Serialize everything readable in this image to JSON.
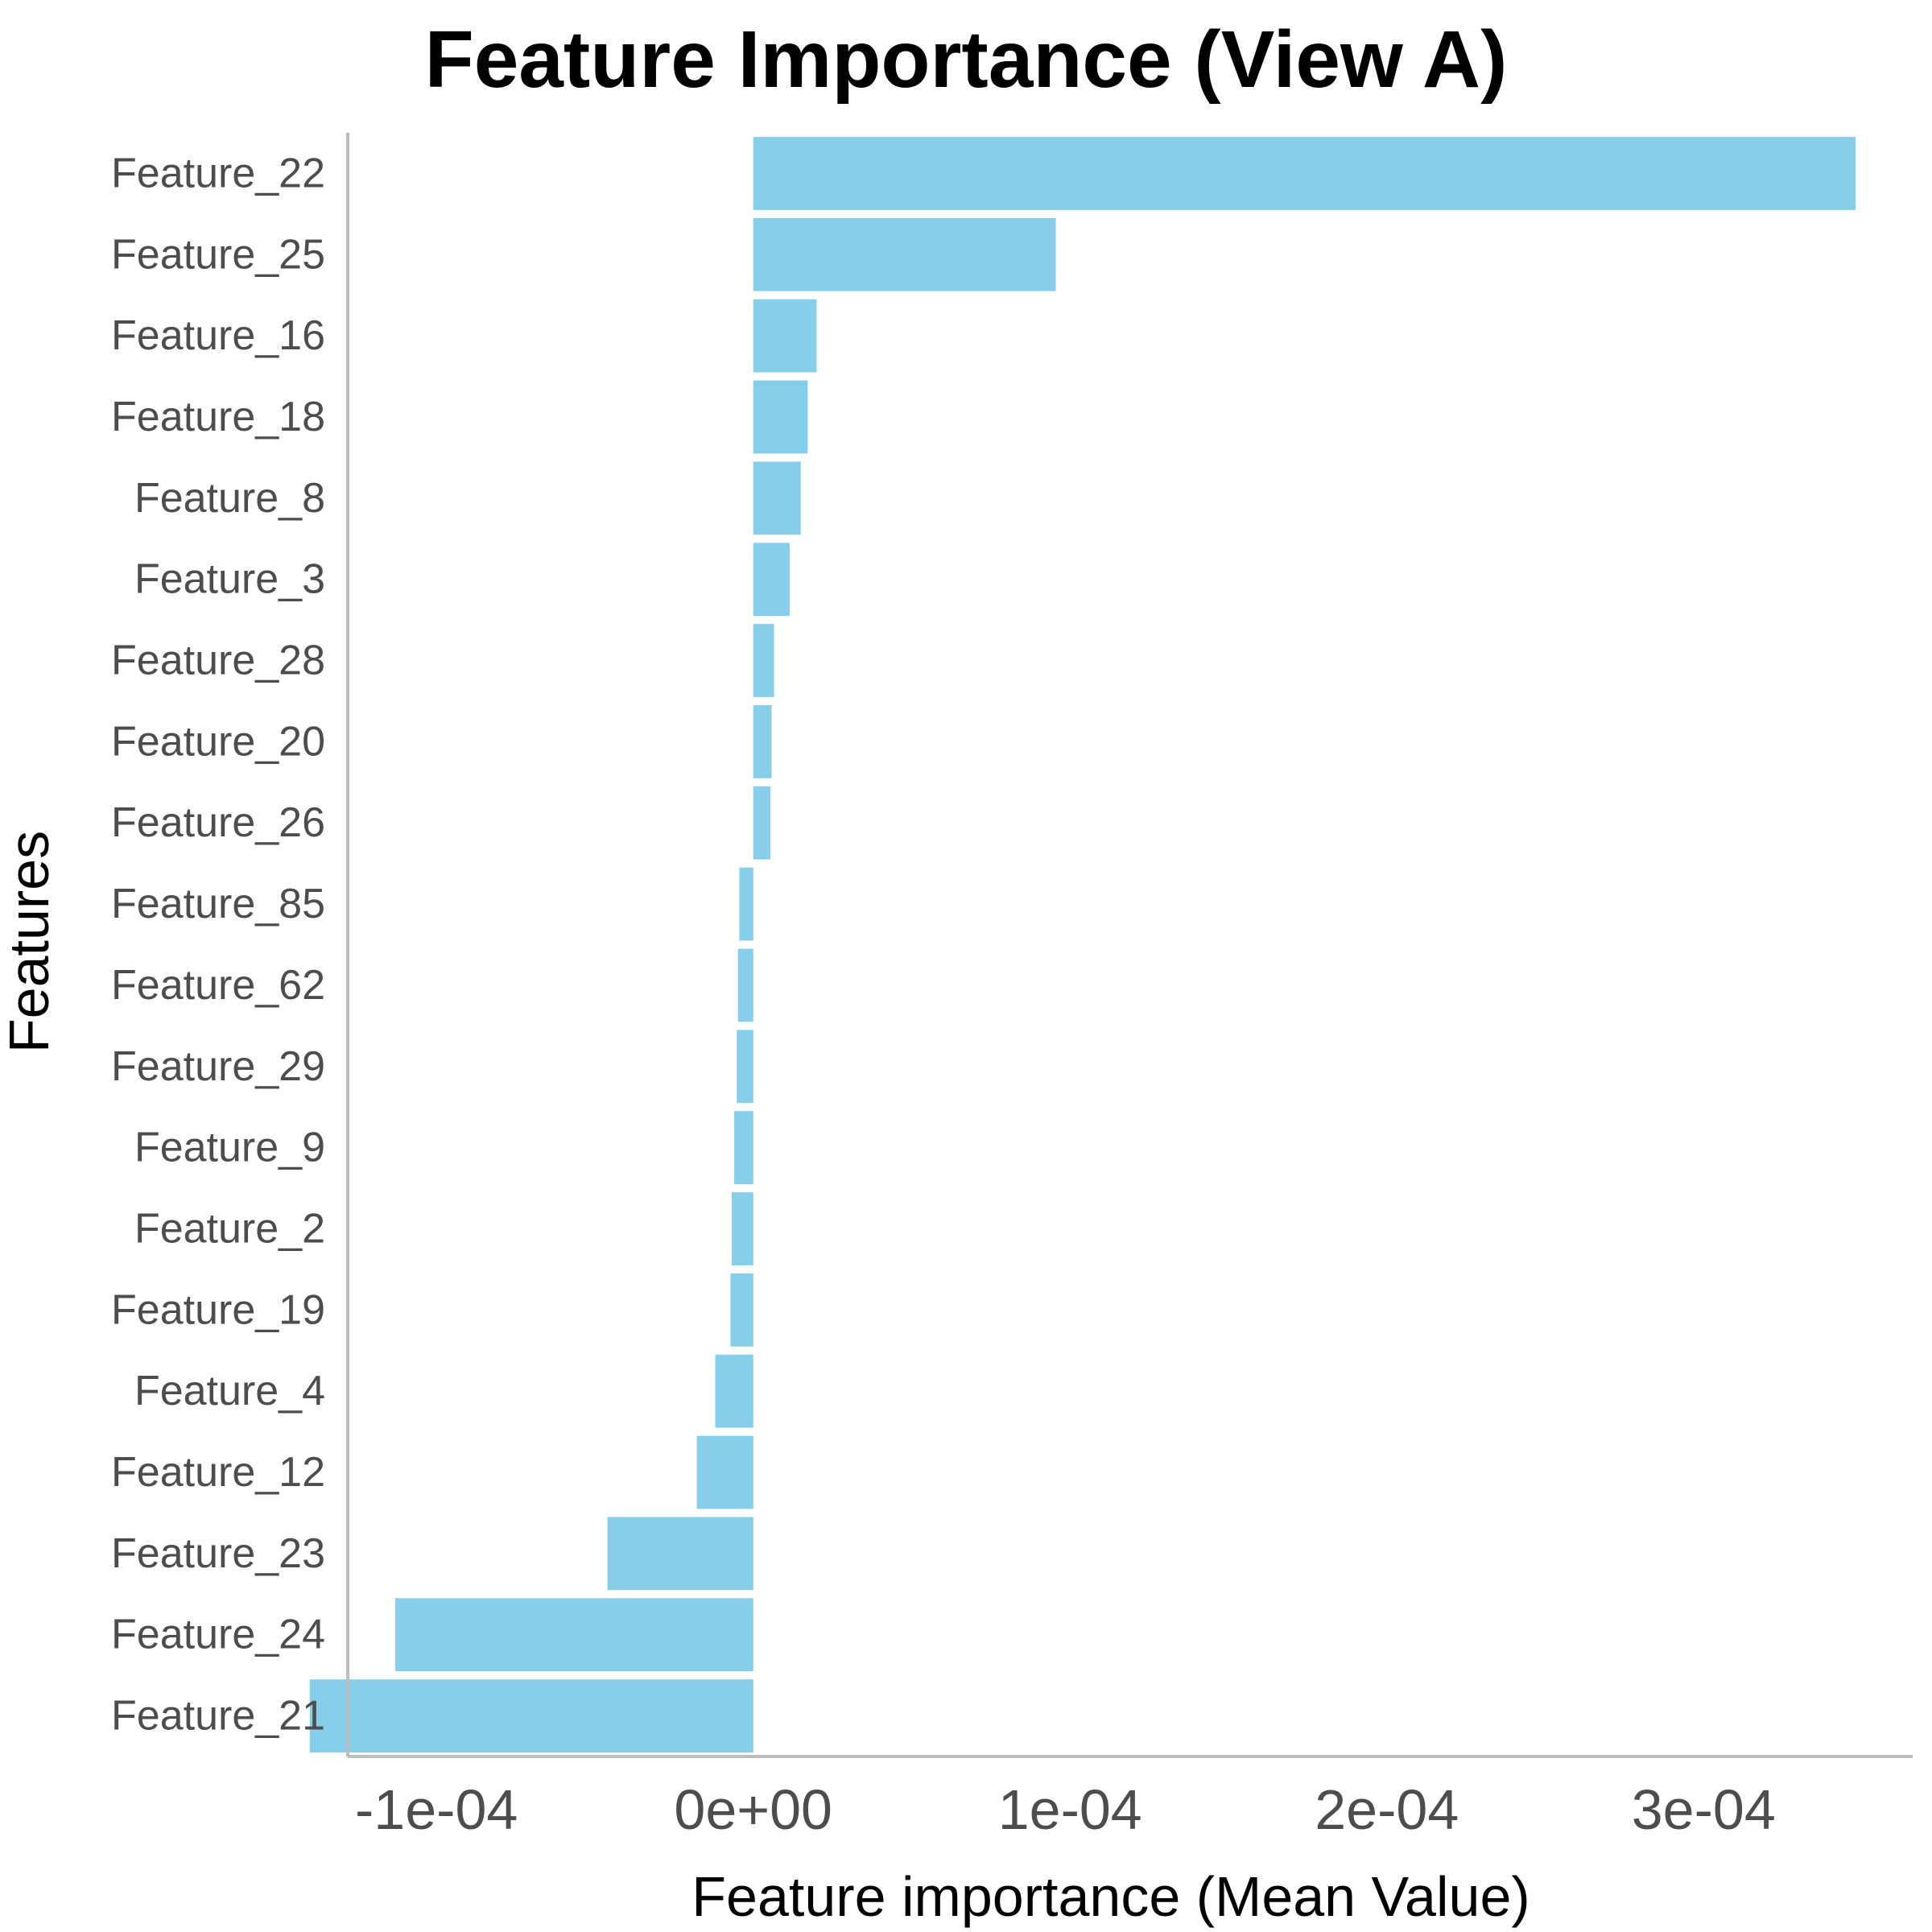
{
  "chart_data": {
    "type": "bar",
    "orientation": "horizontal",
    "title": "Feature Importance (View A)",
    "xlabel": "Feature importance (Mean Value)",
    "ylabel": "Features",
    "bar_color": "#87CEEB",
    "axis_color": "#bebebe",
    "grid": false,
    "xlim": [
      -0.000128,
      0.000366
    ],
    "xticks": [
      {
        "value": -0.0001,
        "label": "-1e-04"
      },
      {
        "value": 0,
        "label": "0e+00"
      },
      {
        "value": 0.0001,
        "label": "1e-04"
      },
      {
        "value": 0.0002,
        "label": "2e-04"
      },
      {
        "value": 0.0003,
        "label": "3e-04"
      }
    ],
    "categories": [
      "Feature_22",
      "Feature_25",
      "Feature_16",
      "Feature_18",
      "Feature_8",
      "Feature_3",
      "Feature_28",
      "Feature_20",
      "Feature_26",
      "Feature_85",
      "Feature_62",
      "Feature_29",
      "Feature_9",
      "Feature_2",
      "Feature_19",
      "Feature_4",
      "Feature_12",
      "Feature_23",
      "Feature_24",
      "Feature_21"
    ],
    "values": [
      0.000348,
      9.55e-05,
      2e-05,
      1.72e-05,
      1.5e-05,
      1.15e-05,
      6.6e-06,
      5.8e-06,
      5.4e-06,
      -4.4e-06,
      -4.8e-06,
      -5.2e-06,
      -6e-06,
      -6.8e-06,
      -7.2e-06,
      -1.2e-05,
      -1.78e-05,
      -4.6e-05,
      -0.000113,
      -0.00014
    ]
  }
}
